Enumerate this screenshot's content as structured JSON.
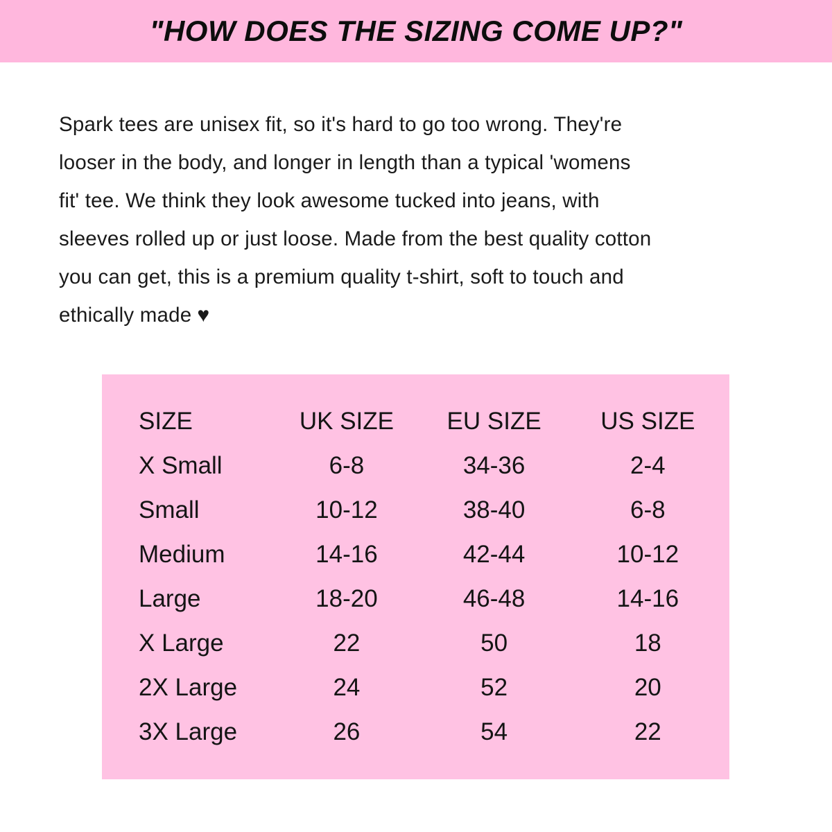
{
  "page": {
    "background": "#ffffff",
    "text_color": "#1a1a1a"
  },
  "header": {
    "title": "\"HOW DOES THE SIZING COME UP?\"",
    "background": "#ffb7dd"
  },
  "intro": {
    "lines": [
      "Spark tees are unisex fit, so it's hard to go too wrong. They're",
      "looser in the body, and longer in length than a typical 'womens",
      "fit' tee. We think they look awesome tucked into jeans, with",
      "sleeves rolled up or just loose. Made from the best quality cotton",
      "you can get, this is a premium quality t-shirt, soft to touch and",
      "ethically made"
    ],
    "heart": "♥"
  },
  "size_chart": {
    "background": "#ffc2e3",
    "columns": [
      "SIZE",
      "UK SIZE",
      "EU SIZE",
      "US SIZE"
    ],
    "rows": [
      [
        "X Small",
        "6-8",
        "34-36",
        "2-4"
      ],
      [
        "Small",
        "10-12",
        "38-40",
        "6-8"
      ],
      [
        "Medium",
        "14-16",
        "42-44",
        "10-12"
      ],
      [
        "Large",
        "18-20",
        "46-48",
        "14-16"
      ],
      [
        "X Large",
        "22",
        "50",
        "18"
      ],
      [
        "2X Large",
        "24",
        "52",
        "20"
      ],
      [
        "3X Large",
        "26",
        "54",
        "22"
      ]
    ]
  }
}
